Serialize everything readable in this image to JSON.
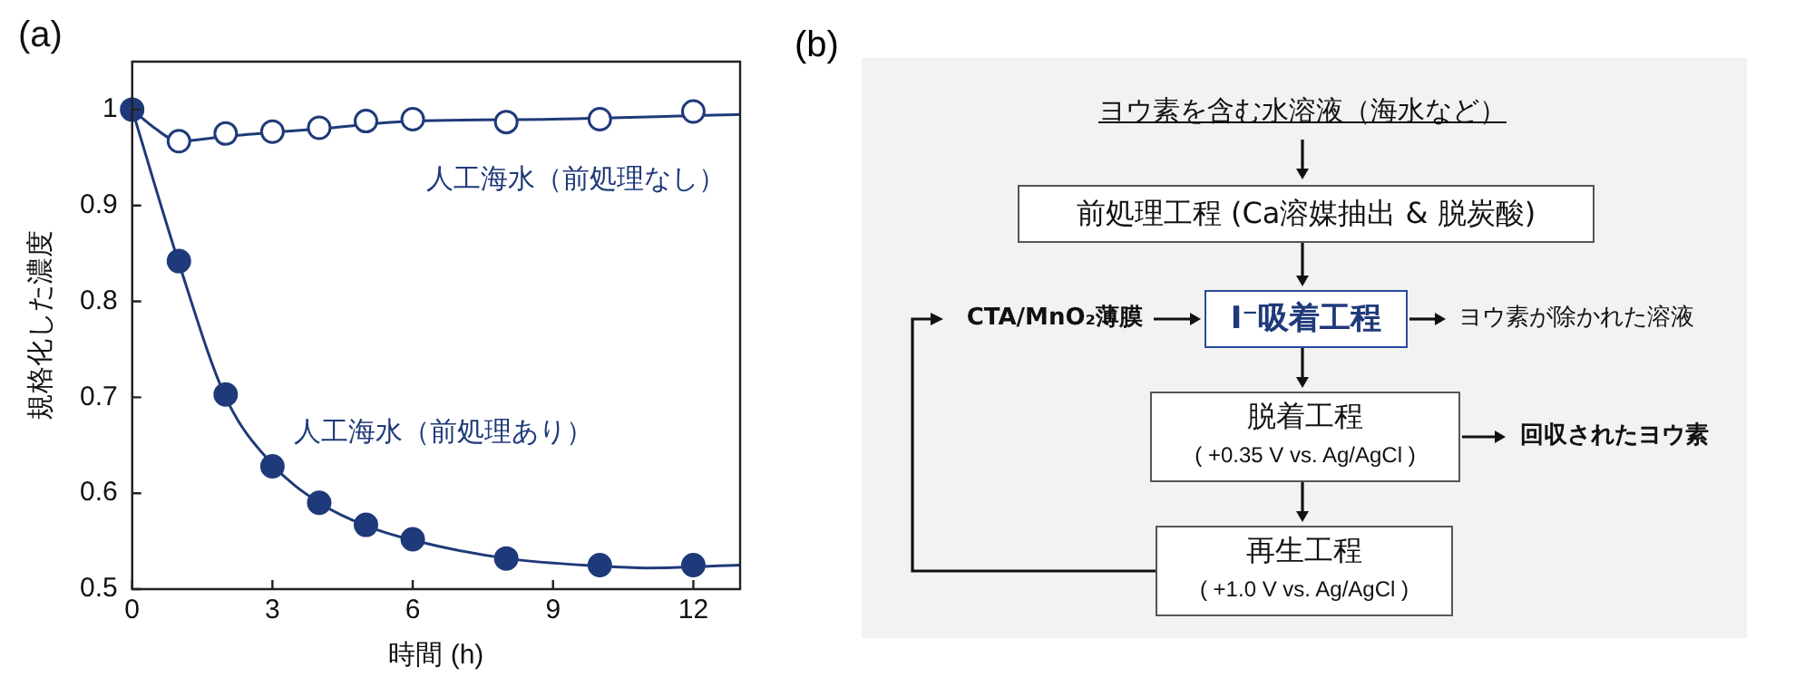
{
  "chart_data": [
    {
      "type": "scatter",
      "title": "(a)",
      "xlabel": "時間 (h)",
      "ylabel": "規格化した濃度",
      "xlim": [
        0,
        13
      ],
      "ylim": [
        0.5,
        1.05
      ],
      "xticks": [
        0,
        3,
        6,
        9,
        12
      ],
      "yticks": [
        0.5,
        0.6,
        0.7,
        0.8,
        0.9,
        1
      ],
      "grid": false,
      "legend": false,
      "marker": "circle",
      "series": [
        {
          "name": "人工海水（前処理なし）",
          "color": "#1f3a7a",
          "x": [
            1,
            2,
            3,
            4,
            5,
            6,
            8,
            10,
            12
          ],
          "values": [
            0.967,
            0.975,
            0.977,
            0.981,
            0.988,
            0.99,
            0.987,
            0.99,
            0.998
          ]
        },
        {
          "name": "人工海水（前処理あり）",
          "color": "#1f3a7a",
          "x": [
            0,
            1,
            2,
            3,
            4,
            5,
            6,
            8,
            10,
            12
          ],
          "values": [
            1,
            0.842,
            0.703,
            0.628,
            0.59,
            0.567,
            0.552,
            0.532,
            0.525,
            0.525
          ]
        },
        {
          "type": "line",
          "color": "#1f3a7a",
          "marker": "none",
          "x": [
            0,
            0.5,
            1,
            2,
            4,
            6,
            9,
            13
          ],
          "values": [
            1,
            0.98,
            0.967,
            0.972,
            0.98,
            0.988,
            0.99,
            0.995
          ]
        },
        {
          "type": "line",
          "color": "#1f3a7a",
          "marker": "none",
          "x": [
            0,
            1,
            2,
            3,
            4,
            5,
            6,
            8,
            10,
            11,
            13
          ],
          "values": [
            1,
            0.84,
            0.7,
            0.63,
            0.59,
            0.566,
            0.551,
            0.532,
            0.524,
            0.522,
            0.525
          ]
        }
      ]
    },
    {
      "type": "other",
      "title": "(b)",
      "annotations": [
        "ヨウ素を含む水溶液（海水など）",
        "前処理工程 (Ca溶媒抽出 & 脱炭酸)",
        "CTA/MnO₂薄膜",
        "I⁻吸着工程",
        "ヨウ素が除かれた溶液",
        "脱着工程",
        "( +0.35 V vs. Ag/AgCl )",
        "回収されたヨウ素",
        "再生工程",
        "( +1.0 V vs. Ag/AgCl )"
      ]
    }
  ]
}
